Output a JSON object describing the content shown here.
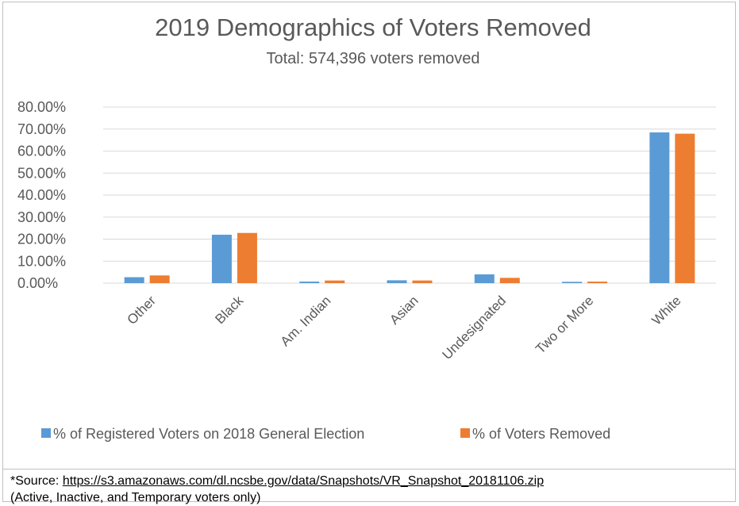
{
  "chart_data": {
    "type": "bar",
    "title": "2019 Demographics of Voters Removed",
    "subtitle": "Total: 574,396 voters removed",
    "categories": [
      "Other",
      "Black",
      "Am. Indian",
      "Asian",
      "Undesignated",
      "Two or More",
      "White"
    ],
    "series": [
      {
        "name": "% of Registered Voters on 2018 General Election",
        "color": "#5b9bd5",
        "values": [
          2.7,
          22.0,
          0.7,
          1.3,
          4.0,
          0.6,
          68.5
        ]
      },
      {
        "name": "% of Voters Removed",
        "color": "#ed7d31",
        "values": [
          3.5,
          22.8,
          1.2,
          1.2,
          2.4,
          0.7,
          67.9
        ]
      }
    ],
    "yticks": [
      "0.00%",
      "10.00%",
      "20.00%",
      "30.00%",
      "40.00%",
      "50.00%",
      "60.00%",
      "70.00%",
      "80.00%"
    ],
    "ylim": [
      0,
      80
    ],
    "grid": true,
    "legend_position": "bottom"
  },
  "source": {
    "prefix": "*Source: ",
    "url": "https://s3.amazonaws.com/dl.ncsbe.gov/data/Snapshots/VR_Snapshot_20181106.zip",
    "note": "(Active, Inactive, and Temporary voters only)"
  }
}
